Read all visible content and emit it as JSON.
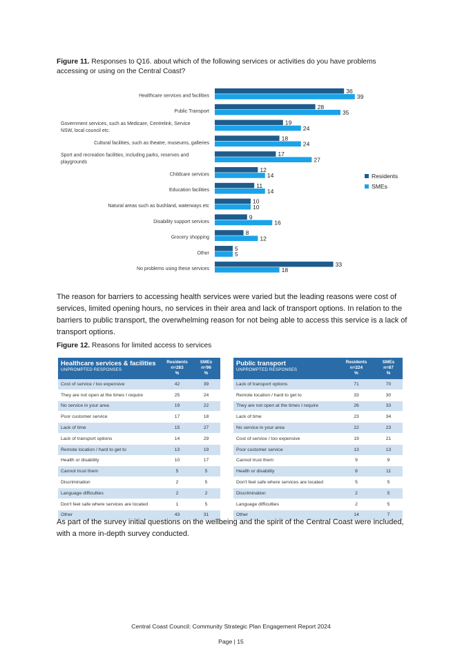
{
  "figure11": {
    "label": "Figure 11.",
    "text": "Responses to Q16. about which of the following services or activities do you have problems accessing or using on the Central Coast?"
  },
  "chart_data": {
    "type": "bar",
    "orientation": "horizontal",
    "categories": [
      [
        "Healthcare services and facilities"
      ],
      [
        "Public Transport"
      ],
      [
        "Government services, such as Medicare, Centrelink, Service",
        "NSW, local council etc."
      ],
      [
        "Cultural facilities, such as theatre, museums, galleries"
      ],
      [
        "Sport and recreation facilities, including parks, reserves and",
        "playgrounds"
      ],
      [
        "Childcare services"
      ],
      [
        "Education facilities"
      ],
      [
        "Natural areas such as bushland, waterways etc"
      ],
      [
        "Disability support services"
      ],
      [
        "Grocery shopping"
      ],
      [
        "Other"
      ],
      [
        "No problems using these services"
      ]
    ],
    "series": [
      {
        "name": "Residents",
        "color": "#1f5c8c",
        "values": [
          36,
          28,
          19,
          18,
          17,
          12,
          11,
          10,
          9,
          8,
          5,
          33
        ]
      },
      {
        "name": "SMEs",
        "color": "#1aa3e8",
        "values": [
          39,
          35,
          24,
          24,
          27,
          14,
          14,
          10,
          16,
          12,
          5,
          18
        ]
      }
    ],
    "legend_position": "right",
    "grid": false
  },
  "paragraph1": "The reason for barriers to accessing health services were varied but the leading reasons were cost of services, limited opening hours, no services in their area and lack of transport options. In relation to the barriers to public transport, the overwhelming reason for not being able to access this service is a lack of transport options.",
  "figure12": {
    "label": "Figure 12.",
    "text": "Reasons for limited access to services"
  },
  "table_health": {
    "title": "Healthcare services & facilities",
    "subtitle": "UNPROMPTED RESPONSES",
    "col1": [
      "Residents",
      "n=283",
      "%"
    ],
    "col2": [
      "SMEs",
      "n=96",
      "%"
    ],
    "rows": [
      [
        "Cost of service / too expensive",
        "42",
        "39"
      ],
      [
        "They are not open at the times I require",
        "25",
        "24"
      ],
      [
        "No service in your area",
        "19",
        "22"
      ],
      [
        "Poor customer service",
        "17",
        "18"
      ],
      [
        "Lack of time",
        "15",
        "27"
      ],
      [
        "Lack of transport options",
        "14",
        "29"
      ],
      [
        "Remote location / hard to get to",
        "13",
        "19"
      ],
      [
        "Health or disability",
        "10",
        "17"
      ],
      [
        "Cannot trust them",
        "5",
        "5"
      ],
      [
        "Discrimination",
        "2",
        "5"
      ],
      [
        "Language difficulties",
        "2",
        "2"
      ],
      [
        "Don't feel safe where services are located",
        "1",
        "5"
      ],
      [
        "Other",
        "43",
        "31"
      ]
    ]
  },
  "table_transport": {
    "title": "Public transport",
    "subtitle": "UNPROMPTED RESPONSES",
    "col1": [
      "Residents",
      "n=224",
      "%"
    ],
    "col2": [
      "SMEs",
      "n=87",
      "%"
    ],
    "rows": [
      [
        "Lack of transport options",
        "71",
        "70"
      ],
      [
        "Remote location / hard to get to",
        "33",
        "30"
      ],
      [
        "They are not open at the times I require",
        "26",
        "33"
      ],
      [
        "Lack of time",
        "23",
        "34"
      ],
      [
        "No service in your area",
        "22",
        "23"
      ],
      [
        "Cost of service / too expensive",
        "19",
        "21"
      ],
      [
        "Poor customer service",
        "13",
        "13"
      ],
      [
        "Cannot trust them",
        "9",
        "9"
      ],
      [
        "Health or disability",
        "8",
        "11"
      ],
      [
        "Don't feel safe where services are located",
        "5",
        "5"
      ],
      [
        "Discrimination",
        "2",
        "5"
      ],
      [
        "Language difficulties",
        "2",
        "5"
      ],
      [
        "Other",
        "14",
        "7"
      ]
    ]
  },
  "paragraph2": "As part of the survey initial questions on the wellbeing and the spirit of the Central Coast were included, with a more in-depth survey conducted.",
  "footer": {
    "report": "Central Coast Council: Community Strategic Plan Engagement Report 2024",
    "page": "Page | 15"
  }
}
